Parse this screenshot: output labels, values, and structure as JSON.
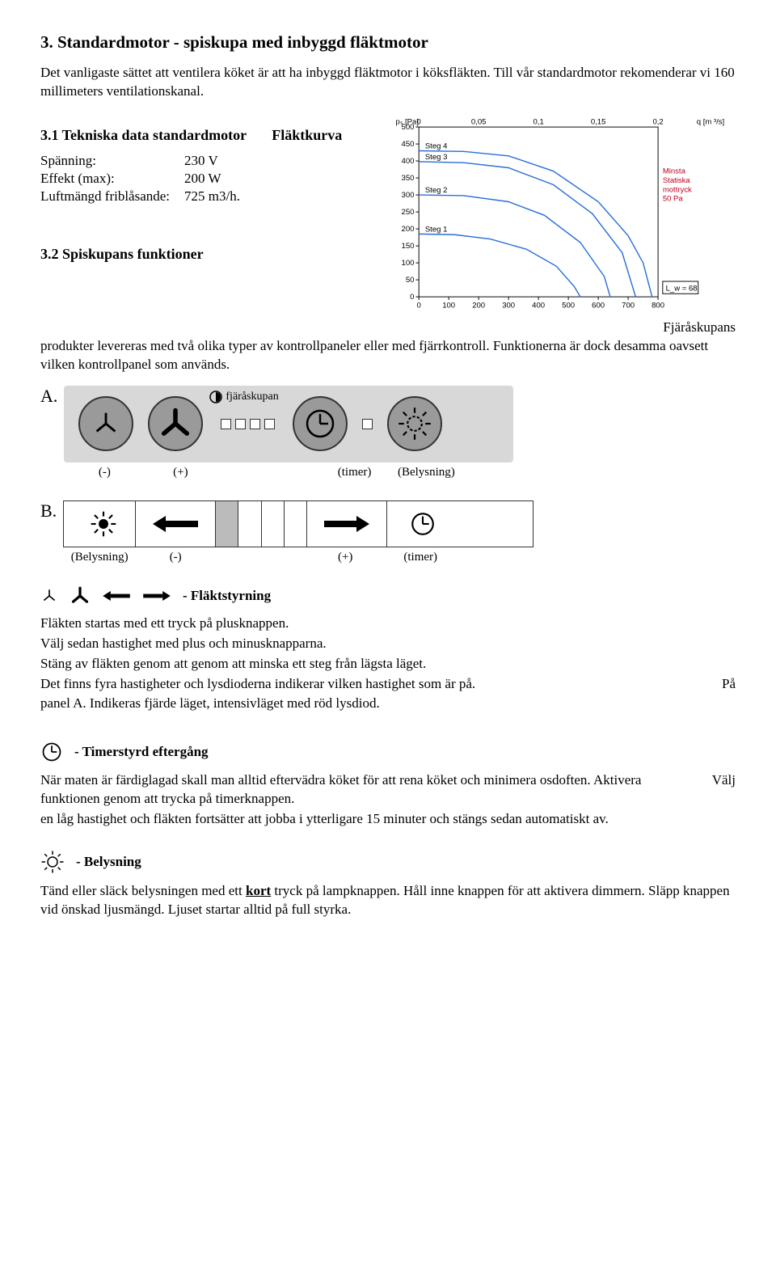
{
  "section3": {
    "heading": "3. Standardmotor - spiskupa med inbyggd fläktmotor",
    "intro": "Det vanligaste sättet att ventilera köket är att ha inbyggd fläktmotor i köksfläkten. Till vår standardmotor rekomenderar vi 160 millimeters ventilationskanal.",
    "s31_head": "3.1 Tekniska data standardmotor",
    "curve_label": "Fläktkurva",
    "spec_rows": [
      [
        "Spänning:",
        "230 V"
      ],
      [
        "Effekt (max):",
        "200 W"
      ],
      [
        "Luftmängd friblåsande:",
        "725 m3/h."
      ]
    ],
    "s32_head": "3.2 Spiskupans funktioner",
    "s32_para": "Fjäråskupans produkter levereras med två olika typer av kontrollpaneler eller med fjärrkontroll. Funktionerna är dock desamma oavsett vilken kontrollpanel som används.",
    "s32_lead": "Fjäråskupans"
  },
  "chart": {
    "type": "line",
    "x_axis_ticks": [
      0,
      100,
      200,
      300,
      400,
      500,
      600,
      700,
      800
    ],
    "y_axis_ticks": [
      0,
      50,
      100,
      150,
      200,
      250,
      300,
      350,
      400,
      450,
      500
    ],
    "y_label_top": "pₛ [Pa]",
    "x_values_top": [
      "0",
      "0,05",
      "0,1",
      "0,15",
      "0,2"
    ],
    "x_label_top_right": "q [m ³/s]",
    "series": [
      {
        "label": "Steg 4",
        "color": "#2a6fd6",
        "points": [
          [
            0,
            430
          ],
          [
            150,
            428
          ],
          [
            300,
            415
          ],
          [
            450,
            370
          ],
          [
            600,
            280
          ],
          [
            700,
            180
          ],
          [
            750,
            100
          ],
          [
            780,
            0
          ]
        ]
      },
      {
        "label": "Steg 3",
        "color": "#2a6fd6",
        "points": [
          [
            0,
            398
          ],
          [
            150,
            395
          ],
          [
            300,
            380
          ],
          [
            450,
            330
          ],
          [
            580,
            245
          ],
          [
            680,
            130
          ],
          [
            725,
            0
          ]
        ]
      },
      {
        "label": "Steg 2",
        "color": "#2a6fd6",
        "points": [
          [
            0,
            300
          ],
          [
            150,
            298
          ],
          [
            300,
            280
          ],
          [
            420,
            240
          ],
          [
            540,
            160
          ],
          [
            620,
            60
          ],
          [
            640,
            0
          ]
        ]
      },
      {
        "label": "Steg 1",
        "color": "#2a6fd6",
        "points": [
          [
            0,
            185
          ],
          [
            120,
            183
          ],
          [
            240,
            170
          ],
          [
            360,
            140
          ],
          [
            460,
            90
          ],
          [
            520,
            30
          ],
          [
            540,
            0
          ]
        ]
      }
    ],
    "note_lines": [
      "Minsta",
      "Statiska",
      "mottryck",
      "50 Pa"
    ],
    "note_color": "#c00020",
    "lw_text": "L_w = 68",
    "axis_color": "#000",
    "grid_color": "#000",
    "bg": "#ffffff",
    "font_size": 10
  },
  "panelA": {
    "letter": "A.",
    "brand": "fjäråskupan",
    "labels": [
      "(-)",
      "(+)",
      "(timer)",
      "(Belysning)"
    ]
  },
  "panelB": {
    "letter": "B.",
    "labels": [
      "(Belysning)",
      "(-)",
      "",
      "(+)",
      "(timer)"
    ]
  },
  "fan_section": {
    "title": "- Fläktstyrning",
    "p1": "Fläkten startas med ett tryck på plusknappen.",
    "p2": "Välj sedan hastighet med plus och minusknapparna.",
    "p3": "Stäng av fläkten genom att genom att minska ett steg från lägsta läget.",
    "p4a": "Det finns fyra hastigheter och lysdioderna indikerar vilken hastighet som är på.",
    "p4b": "På",
    "p5": "panel A. Indikeras fjärde läget, intensivläget med röd lysdiod."
  },
  "timer_section": {
    "title": "- Timerstyrd eftergång",
    "p1a": "När maten är färdiglagad skall man alltid eftervädra köket för att rena köket och minimera osdoften. Aktivera funktionen genom att trycka på timerknappen.",
    "p1b": "Välj",
    "p2": "en låg hastighet och fläkten fortsätter att jobba i ytterligare 15 minuter och stängs sedan automatiskt av."
  },
  "light_section": {
    "title": "- Belysning",
    "p_before": "Tänd eller släck belysningen med ett ",
    "p_emph": "kort",
    "p_after": " tryck på lampknappen. Håll inne knappen för att aktivera dimmern. Släpp knappen vid önskad ljusmängd. Ljuset startar alltid på full styrka."
  }
}
